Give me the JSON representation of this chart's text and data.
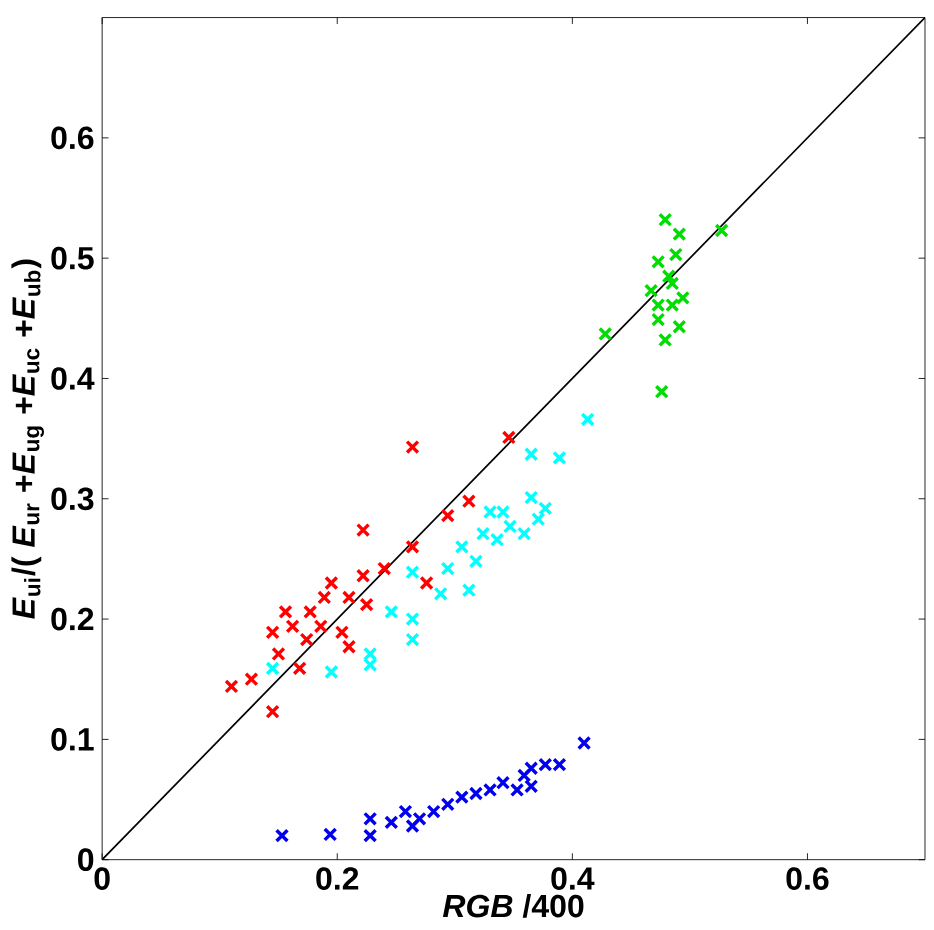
{
  "chart_data": {
    "type": "scatter",
    "xlabel": "*RGB* /400",
    "ylabel": "*E*$_{ui}$/( *E*$_{ur}$ +*E*$_{ug}$ +*E*$_{uc}$ +*E*$_{ub}$)",
    "xlim": [
      0,
      0.7
    ],
    "ylim": [
      0,
      0.7
    ],
    "xticks": [
      0,
      0.2,
      0.4,
      0.6
    ],
    "yticks": [
      0,
      0.1,
      0.2,
      0.3,
      0.4,
      0.5,
      0.6
    ],
    "grid": false,
    "marker": "cross",
    "series": [
      {
        "color": "#ff0000",
        "x": [
          0.11,
          0.127,
          0.145,
          0.145,
          0.15,
          0.168,
          0.162,
          0.177,
          0.189,
          0.195,
          0.186,
          0.204,
          0.21,
          0.21,
          0.222,
          0.222,
          0.225,
          0.24,
          0.264,
          0.264,
          0.276,
          0.294,
          0.312,
          0.346,
          0.156,
          0.174
        ],
        "values": [
          0.144,
          0.15,
          0.123,
          0.189,
          0.171,
          0.159,
          0.194,
          0.206,
          0.218,
          0.23,
          0.194,
          0.189,
          0.177,
          0.218,
          0.236,
          0.274,
          0.212,
          0.242,
          0.343,
          0.26,
          0.23,
          0.286,
          0.298,
          0.351,
          0.206,
          0.183
        ]
      },
      {
        "color": "#00ffff",
        "x": [
          0.145,
          0.195,
          0.228,
          0.228,
          0.246,
          0.264,
          0.264,
          0.264,
          0.288,
          0.294,
          0.306,
          0.318,
          0.324,
          0.336,
          0.341,
          0.347,
          0.359,
          0.365,
          0.371,
          0.377,
          0.365,
          0.389,
          0.413,
          0.33,
          0.312
        ],
        "values": [
          0.159,
          0.156,
          0.162,
          0.171,
          0.206,
          0.183,
          0.2,
          0.239,
          0.221,
          0.242,
          0.26,
          0.248,
          0.271,
          0.266,
          0.289,
          0.277,
          0.271,
          0.301,
          0.283,
          0.292,
          0.337,
          0.334,
          0.366,
          0.289,
          0.224
        ]
      },
      {
        "color": "#00dd00",
        "x": [
          0.428,
          0.476,
          0.479,
          0.491,
          0.527,
          0.473,
          0.482,
          0.467,
          0.485,
          0.473,
          0.491,
          0.479,
          0.485,
          0.494,
          0.473,
          0.488
        ],
        "values": [
          0.437,
          0.389,
          0.532,
          0.52,
          0.523,
          0.497,
          0.485,
          0.473,
          0.461,
          0.449,
          0.443,
          0.432,
          0.479,
          0.467,
          0.461,
          0.503
        ]
      },
      {
        "color": "#0000ee",
        "x": [
          0.153,
          0.194,
          0.228,
          0.228,
          0.246,
          0.258,
          0.27,
          0.282,
          0.294,
          0.306,
          0.318,
          0.33,
          0.341,
          0.353,
          0.359,
          0.365,
          0.377,
          0.389,
          0.41,
          0.365,
          0.264
        ],
        "values": [
          0.02,
          0.021,
          0.02,
          0.034,
          0.031,
          0.04,
          0.034,
          0.04,
          0.046,
          0.052,
          0.055,
          0.058,
          0.064,
          0.058,
          0.07,
          0.076,
          0.079,
          0.079,
          0.097,
          0.061,
          0.028
        ]
      },
      {
        "type": "line",
        "color": "#000000",
        "marker": "none",
        "line_style": "solid",
        "x": [
          0,
          0.7
        ],
        "values": [
          0,
          0.7
        ]
      }
    ]
  }
}
